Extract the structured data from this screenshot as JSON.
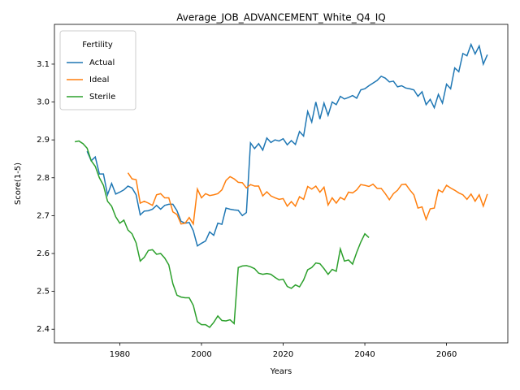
{
  "chart_data": {
    "type": "line",
    "title": "Average_JOB_ADVANCEMENT_White_Q4_IQ",
    "x_label": "Years",
    "y_label": "Score(1-5)",
    "legend_title": "Fertility",
    "legend": "upper left",
    "xlim": [
      1964,
      2075
    ],
    "ylim": [
      2.364,
      3.205
    ],
    "xticks": [
      1980,
      2000,
      2020,
      2040,
      2060
    ],
    "yticks": [
      2.4,
      2.5,
      2.6,
      2.7,
      2.8,
      2.9,
      {
        "value": 3,
        "label": "3.0"
      },
      3.1
    ],
    "series": [
      {
        "name": "Actual",
        "color": "#1f77b4",
        "x": [
          1972,
          1973,
          1974,
          1975,
          1976,
          1977,
          1978,
          1979,
          1980,
          1981,
          1982,
          1983,
          1984,
          1985,
          1986,
          1987,
          1988,
          1989,
          1990,
          1991,
          1992,
          1993,
          1994,
          1995,
          1996,
          1997,
          1998,
          1999,
          2000,
          2001,
          2002,
          2003,
          2004,
          2005,
          2006,
          2007,
          2008,
          2009,
          2010,
          2011,
          2012,
          2013,
          2014,
          2015,
          2016,
          2017,
          2018,
          2019,
          2020,
          2021,
          2022,
          2023,
          2024,
          2025,
          2026,
          2027,
          2028,
          2029,
          2030,
          2031,
          2032,
          2033,
          2034,
          2035,
          2036,
          2037,
          2038,
          2039,
          2040,
          2041,
          2042,
          2043,
          2044,
          2045,
          2046,
          2047,
          2048,
          2049,
          2050,
          2051,
          2052,
          2053,
          2054,
          2055,
          2056,
          2057,
          2058,
          2059,
          2060,
          2061,
          2062,
          2063,
          2064,
          2065,
          2066,
          2067,
          2068,
          2069,
          2070
        ],
        "values": [
          2.87,
          2.845,
          2.855,
          2.81,
          2.81,
          2.755,
          2.785,
          2.757,
          2.762,
          2.768,
          2.778,
          2.773,
          2.755,
          2.702,
          2.712,
          2.713,
          2.717,
          2.727,
          2.717,
          2.727,
          2.73,
          2.73,
          2.713,
          2.685,
          2.68,
          2.682,
          2.66,
          2.62,
          2.627,
          2.633,
          2.657,
          2.648,
          2.68,
          2.677,
          2.72,
          2.717,
          2.715,
          2.714,
          2.7,
          2.708,
          2.892,
          2.877,
          2.89,
          2.873,
          2.905,
          2.893,
          2.9,
          2.897,
          2.903,
          2.887,
          2.898,
          2.888,
          2.922,
          2.91,
          2.975,
          2.947,
          3.0,
          2.955,
          2.997,
          2.965,
          3.0,
          2.993,
          3.015,
          3.008,
          3.012,
          3.017,
          3.01,
          3.032,
          3.035,
          3.043,
          3.05,
          3.057,
          3.068,
          3.063,
          3.053,
          3.055,
          3.04,
          3.043,
          3.037,
          3.035,
          3.032,
          3.015,
          3.027,
          2.993,
          3.007,
          2.985,
          3.02,
          2.997,
          3.047,
          3.035,
          3.09,
          3.08,
          3.128,
          3.122,
          3.152,
          3.127,
          3.148,
          3.1,
          3.125
        ]
      },
      {
        "name": "Ideal",
        "color": "#ff7f0e",
        "x": [
          1982,
          1983,
          1984,
          1985,
          1986,
          1987,
          1988,
          1989,
          1990,
          1991,
          1992,
          1993,
          1994,
          1995,
          1996,
          1997,
          1998,
          1999,
          2000,
          2001,
          2002,
          2003,
          2004,
          2005,
          2006,
          2007,
          2008,
          2009,
          2010,
          2011,
          2012,
          2013,
          2014,
          2015,
          2016,
          2017,
          2018,
          2019,
          2020,
          2021,
          2022,
          2023,
          2024,
          2025,
          2026,
          2027,
          2028,
          2029,
          2030,
          2031,
          2032,
          2033,
          2034,
          2035,
          2036,
          2037,
          2038,
          2039,
          2040,
          2041,
          2042,
          2043,
          2044,
          2045,
          2046,
          2047,
          2048,
          2049,
          2050,
          2051,
          2052,
          2053,
          2054,
          2055,
          2056,
          2057,
          2058,
          2059,
          2060,
          2061,
          2062,
          2063,
          2064,
          2065,
          2066,
          2067,
          2068,
          2069,
          2070
        ],
        "values": [
          2.813,
          2.797,
          2.795,
          2.733,
          2.738,
          2.733,
          2.727,
          2.755,
          2.758,
          2.747,
          2.747,
          2.71,
          2.703,
          2.678,
          2.68,
          2.695,
          2.678,
          2.77,
          2.747,
          2.758,
          2.753,
          2.755,
          2.758,
          2.768,
          2.793,
          2.803,
          2.797,
          2.788,
          2.787,
          2.773,
          2.782,
          2.778,
          2.778,
          2.752,
          2.763,
          2.752,
          2.747,
          2.743,
          2.745,
          2.725,
          2.737,
          2.725,
          2.75,
          2.743,
          2.777,
          2.77,
          2.778,
          2.762,
          2.775,
          2.728,
          2.747,
          2.733,
          2.748,
          2.742,
          2.762,
          2.76,
          2.768,
          2.782,
          2.78,
          2.777,
          2.783,
          2.772,
          2.772,
          2.758,
          2.742,
          2.758,
          2.767,
          2.782,
          2.783,
          2.768,
          2.755,
          2.72,
          2.723,
          2.69,
          2.718,
          2.72,
          2.768,
          2.762,
          2.78,
          2.773,
          2.767,
          2.76,
          2.755,
          2.743,
          2.757,
          2.738,
          2.755,
          2.725,
          2.757
        ]
      },
      {
        "name": "Sterile",
        "color": "#2ca02c",
        "x": [
          1969,
          1970,
          1971,
          1972,
          1973,
          1974,
          1975,
          1976,
          1977,
          1978,
          1979,
          1980,
          1981,
          1982,
          1983,
          1984,
          1985,
          1986,
          1987,
          1988,
          1989,
          1990,
          1991,
          1992,
          1993,
          1994,
          1995,
          1996,
          1997,
          1998,
          1999,
          2000,
          2001,
          2002,
          2003,
          2004,
          2005,
          2006,
          2007,
          2008,
          2009,
          2010,
          2011,
          2012,
          2013,
          2014,
          2015,
          2016,
          2017,
          2018,
          2019,
          2020,
          2021,
          2022,
          2023,
          2024,
          2025,
          2026,
          2027,
          2028,
          2029,
          2030,
          2031,
          2032,
          2033,
          2034,
          2035,
          2036,
          2037,
          2038,
          2039,
          2040,
          2041
        ],
        "values": [
          2.895,
          2.897,
          2.89,
          2.878,
          2.845,
          2.83,
          2.8,
          2.78,
          2.738,
          2.725,
          2.697,
          2.68,
          2.688,
          2.662,
          2.652,
          2.628,
          2.58,
          2.59,
          2.608,
          2.61,
          2.598,
          2.6,
          2.588,
          2.57,
          2.52,
          2.49,
          2.485,
          2.483,
          2.483,
          2.463,
          2.42,
          2.412,
          2.412,
          2.405,
          2.418,
          2.435,
          2.423,
          2.422,
          2.425,
          2.415,
          2.563,
          2.567,
          2.568,
          2.565,
          2.56,
          2.548,
          2.545,
          2.547,
          2.545,
          2.537,
          2.53,
          2.532,
          2.513,
          2.508,
          2.517,
          2.512,
          2.53,
          2.557,
          2.563,
          2.575,
          2.573,
          2.56,
          2.545,
          2.558,
          2.553,
          2.612,
          2.58,
          2.583,
          2.572,
          2.603,
          2.63,
          2.652,
          2.642
        ]
      }
    ]
  }
}
